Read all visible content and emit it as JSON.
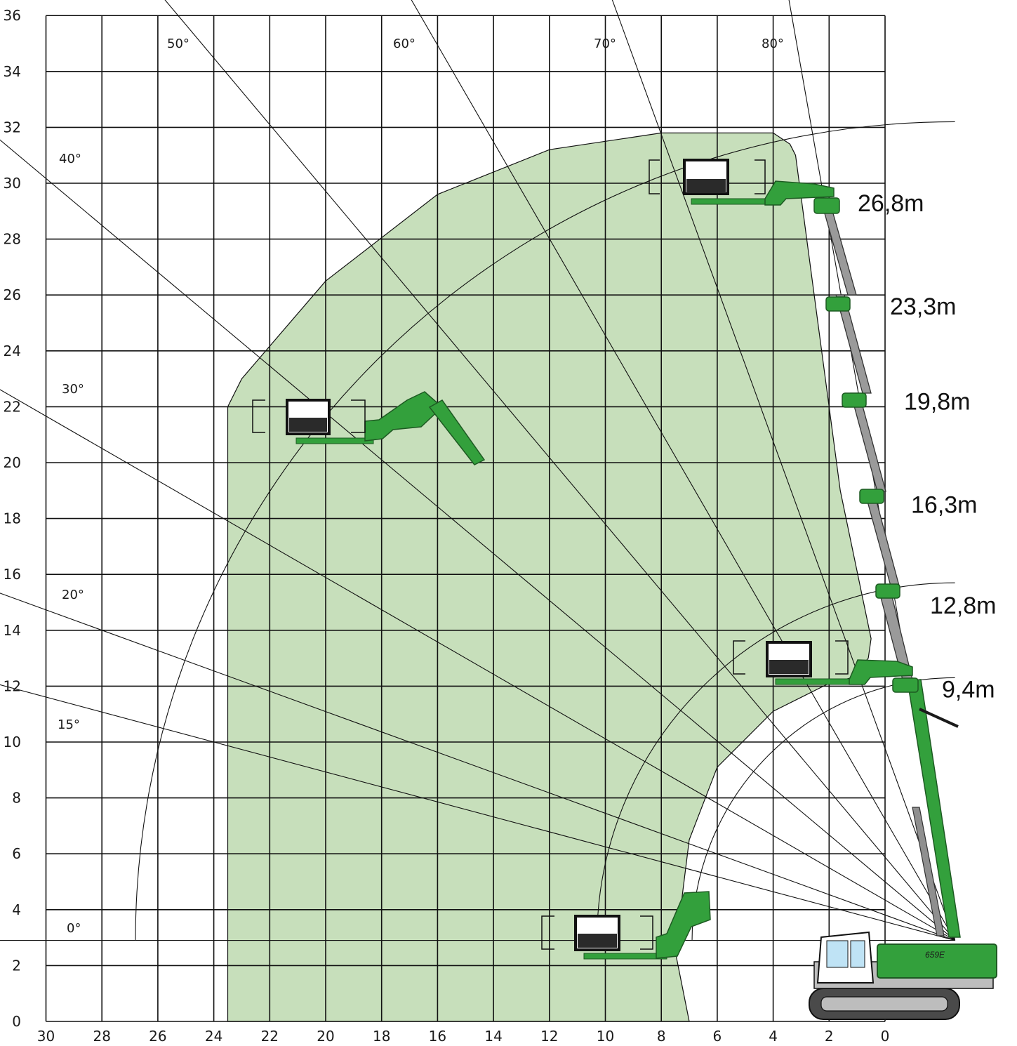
{
  "chart_data": {
    "type": "working-range-diagram",
    "x_axis": {
      "ticks": [
        "30",
        "28",
        "26",
        "24",
        "22",
        "20",
        "18",
        "16",
        "14",
        "12",
        "10",
        "8",
        "6",
        "4",
        "2",
        "0"
      ],
      "range": [
        30,
        0
      ]
    },
    "y_axis": {
      "ticks": [
        "0",
        "2",
        "4",
        "6",
        "8",
        "10",
        "12",
        "14",
        "16",
        "18",
        "20",
        "22",
        "24",
        "26",
        "28",
        "30",
        "32",
        "34",
        "36"
      ],
      "range": [
        0,
        36
      ]
    },
    "angle_labels": [
      {
        "label": "0°",
        "angle": 0
      },
      {
        "label": "15°",
        "angle": 15
      },
      {
        "label": "20°",
        "angle": 20
      },
      {
        "label": "30°",
        "angle": 30
      },
      {
        "label": "40°",
        "angle": 40
      },
      {
        "label": "50°",
        "angle": 50
      },
      {
        "label": "60°",
        "angle": 60
      },
      {
        "label": "70°",
        "angle": 70
      },
      {
        "label": "80°",
        "angle": 80
      }
    ],
    "boom_lengths": [
      {
        "label": "26,8m",
        "height": 29.3
      },
      {
        "label": "23,3m",
        "height": 25.6
      },
      {
        "label": "19,8m",
        "height": 22.2
      },
      {
        "label": "16,3m",
        "height": 18.5
      },
      {
        "label": "12,8m",
        "height": 14.9
      },
      {
        "label": "9,4m",
        "height": 11.9
      }
    ],
    "work_area": {
      "color": "#c7dfbb",
      "outline": [
        [
          23.5,
          0
        ],
        [
          23.5,
          22
        ],
        [
          23,
          23
        ],
        [
          20,
          26.5
        ],
        [
          16,
          29.6
        ],
        [
          12,
          31.2
        ],
        [
          8,
          31.8
        ],
        [
          4,
          31.8
        ],
        [
          3.4,
          31.4
        ],
        [
          3.2,
          31
        ],
        [
          1.6,
          19
        ],
        [
          0.5,
          13.7
        ],
        [
          0.6,
          13
        ],
        [
          1.2,
          12.3
        ],
        [
          2,
          12.1
        ],
        [
          4,
          11.1
        ],
        [
          6,
          9.1
        ],
        [
          7,
          6.5
        ],
        [
          7.5,
          2.5
        ],
        [
          7,
          0
        ]
      ]
    },
    "reach_arcs": [
      {
        "radius": 9.4
      },
      {
        "radius": 12.8
      },
      {
        "radius": 29.3
      }
    ],
    "machine": {
      "model": "659E",
      "color": "#33a03c"
    }
  }
}
